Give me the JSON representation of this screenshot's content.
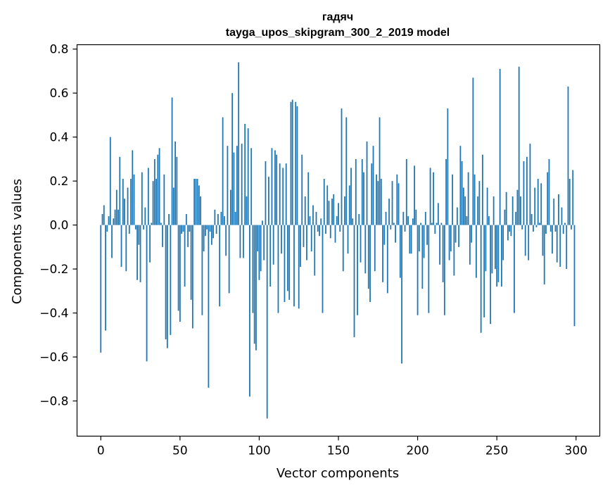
{
  "chart_data": {
    "type": "bar",
    "title": "гадяч",
    "subtitle": "tayga_upos_skipgram_300_2_2019 model",
    "xlabel": "Vector components",
    "ylabel": "Components values",
    "xlim": [
      -15,
      315
    ],
    "ylim": [
      -0.96,
      0.82
    ],
    "xticks": [
      0,
      50,
      100,
      150,
      200,
      250,
      300
    ],
    "xtick_labels": [
      "0",
      "50",
      "100",
      "150",
      "200",
      "250",
      "300"
    ],
    "yticks": [
      -0.8,
      -0.6,
      -0.4,
      -0.2,
      0.0,
      0.2,
      0.4,
      0.6,
      0.8
    ],
    "ytick_labels": [
      "−0.8",
      "−0.6",
      "−0.4",
      "−0.2",
      "0.0",
      "0.2",
      "0.4",
      "0.6",
      "0.8"
    ],
    "bar_color": "#1f77b4",
    "grid": false,
    "legend": "none",
    "values": [
      -0.58,
      0.05,
      0.09,
      -0.48,
      -0.03,
      0.04,
      0.4,
      -0.15,
      0.03,
      0.07,
      0.16,
      0.07,
      0.31,
      -0.19,
      0.21,
      0.12,
      -0.21,
      0.17,
      -0.04,
      0.21,
      0.34,
      0.23,
      -0.02,
      -0.25,
      -0.09,
      -0.26,
      0.24,
      -0.02,
      0.08,
      -0.62,
      0.26,
      -0.17,
      0.01,
      0.2,
      0.3,
      0.21,
      0.32,
      0.35,
      0.01,
      -0.1,
      0.23,
      -0.52,
      -0.56,
      0.05,
      -0.5,
      0.58,
      0.17,
      0.38,
      0.31,
      -0.39,
      -0.44,
      -0.04,
      -0.03,
      -0.28,
      0.05,
      -0.1,
      -0.03,
      -0.34,
      -0.47,
      0.21,
      0.21,
      0.21,
      0.18,
      0.13,
      -0.41,
      -0.12,
      -0.05,
      -0.02,
      -0.74,
      -0.03,
      -0.09,
      -0.06,
      0.07,
      -0.04,
      0.05,
      -0.37,
      0.06,
      0.49,
      0.04,
      -0.14,
      0.36,
      -0.31,
      0.16,
      0.6,
      0.33,
      0.06,
      0.36,
      0.74,
      -0.15,
      0.37,
      -0.15,
      0.46,
      0.13,
      0.44,
      -0.78,
      0.35,
      -0.4,
      -0.54,
      -0.57,
      -0.12,
      -0.25,
      -0.21,
      0.02,
      -0.16,
      0.29,
      -0.88,
      0.22,
      -0.28,
      0.35,
      -0.18,
      0.34,
      0.32,
      -0.4,
      0.28,
      -0.13,
      0.26,
      -0.35,
      0.28,
      -0.3,
      -0.34,
      0.56,
      0.57,
      -0.37,
      0.56,
      0.54,
      -0.38,
      -0.19,
      0.32,
      -0.1,
      0.13,
      -0.16,
      0.24,
      0.04,
      -0.12,
      0.09,
      -0.23,
      0.06,
      -0.03,
      -0.05,
      0.03,
      -0.4,
      0.21,
      -0.04,
      0.18,
      0.11,
      -0.06,
      0.12,
      0.14,
      -0.08,
      0.04,
      0.1,
      -0.03,
      0.53,
      -0.21,
      0.13,
      0.49,
      -0.13,
      0.18,
      0.26,
      0.03,
      -0.51,
      0.3,
      -0.41,
      0.05,
      -0.17,
      0.3,
      0.24,
      -0.22,
      0.38,
      -0.29,
      -0.35,
      0.28,
      0.36,
      -0.21,
      0.23,
      0.2,
      0.49,
      0.21,
      -0.26,
      -0.09,
      0.06,
      -0.31,
      0.12,
      -0.02,
      0.2,
      0.01,
      -0.08,
      0.23,
      0.19,
      -0.24,
      -0.63,
      0.06,
      -0.03,
      0.3,
      0.04,
      -0.13,
      -0.13,
      0.03,
      0.27,
      0.07,
      -0.41,
      -0.12,
      0.01,
      -0.29,
      -0.15,
      0.06,
      -0.09,
      -0.4,
      0.26,
      0.01,
      0.24,
      -0.04,
      0.01,
      0.1,
      -0.18,
      0.01,
      -0.26,
      -0.41,
      0.3,
      0.53,
      -0.16,
      -0.12,
      0.23,
      -0.23,
      -0.08,
      0.08,
      -0.1,
      0.36,
      0.29,
      0.17,
      0.13,
      0.04,
      0.24,
      -0.18,
      -0.08,
      0.67,
      0.23,
      -0.24,
      0.13,
      0.2,
      -0.49,
      0.32,
      -0.42,
      -0.21,
      0.17,
      0.04,
      -0.45,
      -0.22,
      0.13,
      -0.2,
      -0.28,
      -0.26,
      0.71,
      -0.28,
      -0.16,
      0.07,
      0.15,
      -0.07,
      -0.03,
      -0.05,
      0.13,
      -0.4,
      0.06,
      0.16,
      0.72,
      0.13,
      -0.02,
      0.29,
      -0.14,
      0.31,
      -0.16,
      0.37,
      0.05,
      -0.03,
      0.17,
      -0.01,
      0.21,
      0.01,
      0.19,
      -0.14,
      -0.27,
      -0.04,
      0.24,
      0.3,
      -0.03,
      -0.13,
      0.12,
      -0.03,
      -0.17,
      0.14,
      -0.19,
      0.08,
      -0.04,
      0.01,
      -0.2,
      0.63,
      0.21,
      -0.02,
      0.25,
      -0.46
    ]
  }
}
